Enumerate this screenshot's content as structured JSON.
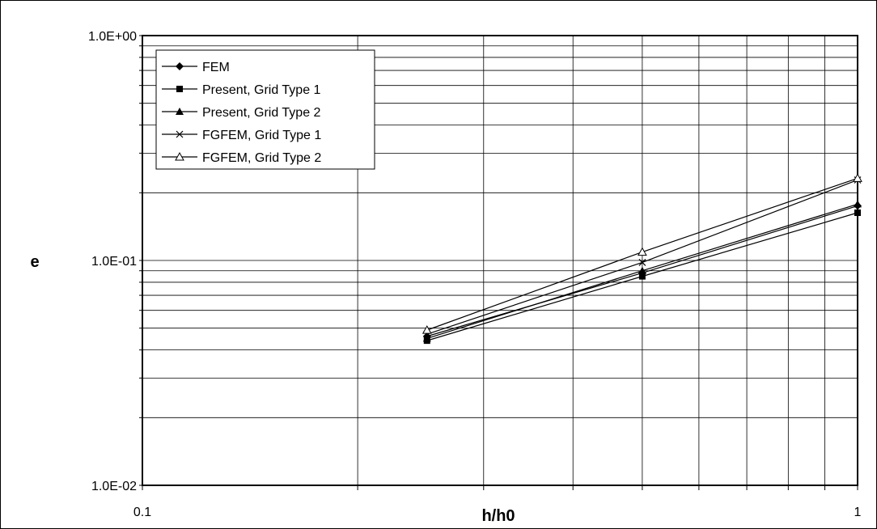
{
  "chart_data": {
    "type": "line",
    "title": "",
    "xlabel": "h/h0",
    "ylabel": "e",
    "x_scale": "log",
    "y_scale": "log",
    "xlim": [
      0.1,
      1
    ],
    "ylim": [
      0.01,
      1
    ],
    "x_ticks": [
      "0.1",
      "1"
    ],
    "y_ticks": [
      "1.0E-02",
      "1.0E-01",
      "1.0E+00"
    ],
    "grid": true,
    "legend_position": "top-left",
    "series": [
      {
        "name": "FEM",
        "marker": "diamond",
        "x": [
          0.25,
          0.5,
          1.0
        ],
        "y": [
          0.046,
          0.088,
          0.175
        ]
      },
      {
        "name": "Present, Grid Type 1",
        "marker": "square",
        "x": [
          0.25,
          0.5,
          1.0
        ],
        "y": [
          0.044,
          0.085,
          0.163
        ]
      },
      {
        "name": "Present, Grid Type 2",
        "marker": "triangle",
        "x": [
          0.25,
          0.5,
          1.0
        ],
        "y": [
          0.045,
          0.09,
          0.178
        ]
      },
      {
        "name": "FGFEM, Grid Type 1",
        "marker": "cross",
        "x": [
          0.25,
          0.5,
          1.0
        ],
        "y": [
          0.047,
          0.098,
          0.228
        ]
      },
      {
        "name": "FGFEM, Grid Type 2",
        "marker": "open-triangle",
        "x": [
          0.25,
          0.5,
          1.0
        ],
        "y": [
          0.049,
          0.109,
          0.232
        ]
      }
    ]
  }
}
